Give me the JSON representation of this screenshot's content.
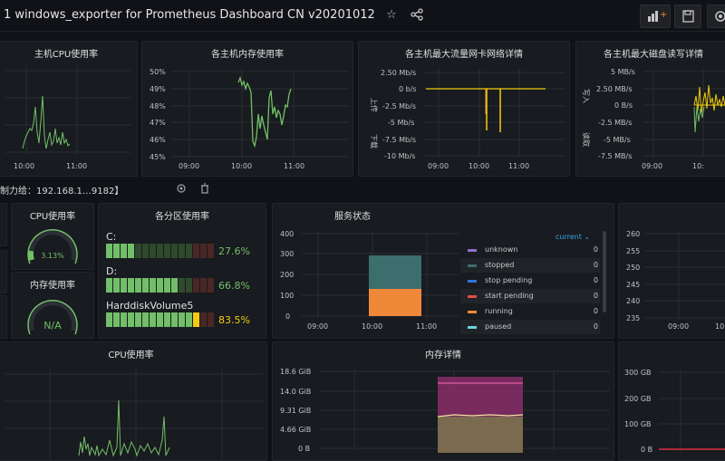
{
  "header": {
    "title": "1 windows_exporter for Prometheus Dashboard CN v20201012",
    "icons": [
      "star-icon",
      "share-icon",
      "add-panel-icon",
      "save-icon",
      "settings-icon"
    ]
  },
  "row_header": {
    "label": "制力给：192.168.1…9182】"
  },
  "panels": {
    "cpu_usage_host": {
      "title": "主机CPU使用率",
      "x_ticks": [
        "10:00",
        "11:00"
      ]
    },
    "mem_usage_host": {
      "title": "各主机内存使用率",
      "y_ticks": [
        "50%",
        "49%",
        "48%",
        "47%",
        "46%",
        "45%"
      ],
      "x_ticks": [
        "09:00",
        "10:00",
        "11:00"
      ]
    },
    "net_traffic": {
      "title": "各主机最大流量网卡网络详情",
      "y_ticks": [
        "2.50 Mb/s",
        "0 b/s",
        "-2.5 Mb/s",
        "-5 Mb/s",
        "-7.5 Mb/s",
        "-10 Mb/s"
      ],
      "x_ticks": [
        "09:00",
        "10:00",
        "11:00"
      ],
      "y_label_top": "上传",
      "y_label_bottom": "下载"
    },
    "disk_rw": {
      "title": "各主机最大磁盘读写详情",
      "y_ticks": [
        "5 MB/s",
        "2.50 MB/s",
        "0 B/s",
        "-2.5 MB/s",
        "-5 MB/s",
        "-7.5 MB/s"
      ],
      "x_ticks": [
        "09:00",
        "10:"
      ],
      "y_label_top": "写入",
      "y_label_bottom": "读取"
    },
    "cpu_gauge": {
      "title": "CPU使用率",
      "value": "3.13%"
    },
    "mem_gauge": {
      "title": "内存使用率",
      "value": "N/A"
    },
    "partitions": {
      "title": "各分区使用率",
      "items": [
        {
          "label": "C:",
          "percent": "27.6%",
          "fraction": 0.276,
          "color": "#73bf69"
        },
        {
          "label": "D:",
          "percent": "66.8%",
          "fraction": 0.668,
          "color": "#73bf69"
        },
        {
          "label": "HarddiskVolume5",
          "percent": "83.5%",
          "fraction": 0.835,
          "color": "#f2cc0c"
        }
      ]
    },
    "service_status": {
      "title": "服务状态",
      "y_ticks": [
        "400",
        "300",
        "200",
        "100",
        "0"
      ],
      "x_ticks": [
        "09:00",
        "10:00",
        "11:00"
      ],
      "legend_header": "current ⌄",
      "legend": [
        {
          "name": "unknown",
          "value": "0",
          "color": "#8f6fd1"
        },
        {
          "name": "stopped",
          "value": "0",
          "color": "#3d6e6e"
        },
        {
          "name": "stop pending",
          "value": "0",
          "color": "#3274d9"
        },
        {
          "name": "start pending",
          "value": "0",
          "color": "#e24d42"
        },
        {
          "name": "running",
          "value": "0",
          "color": "#f0883a"
        },
        {
          "name": "paused",
          "value": "0",
          "color": "#6ed0e0"
        }
      ]
    },
    "right_mid": {
      "y_ticks": [
        "260",
        "255",
        "250",
        "245",
        "240",
        "235"
      ],
      "x_ticks": [
        "09:00",
        "10:00"
      ]
    },
    "cpu_usage": {
      "title": "CPU使用率"
    },
    "mem_detail": {
      "title": "内存详情",
      "y_ticks": [
        "18.6 GiB",
        "14.0 GiB",
        "9.31 GiB",
        "4.66 GiB",
        "0 B"
      ]
    },
    "right_bottom": {
      "y_ticks": [
        "300 GB",
        "200 GB",
        "100 GB",
        "0 B"
      ]
    }
  },
  "colors": {
    "green": "#73bf69",
    "yellow": "#f2cc0c",
    "orange": "#f0883a",
    "teal": "#3d6e6e",
    "purple": "#8a2d6b",
    "red": "#e02f44"
  }
}
